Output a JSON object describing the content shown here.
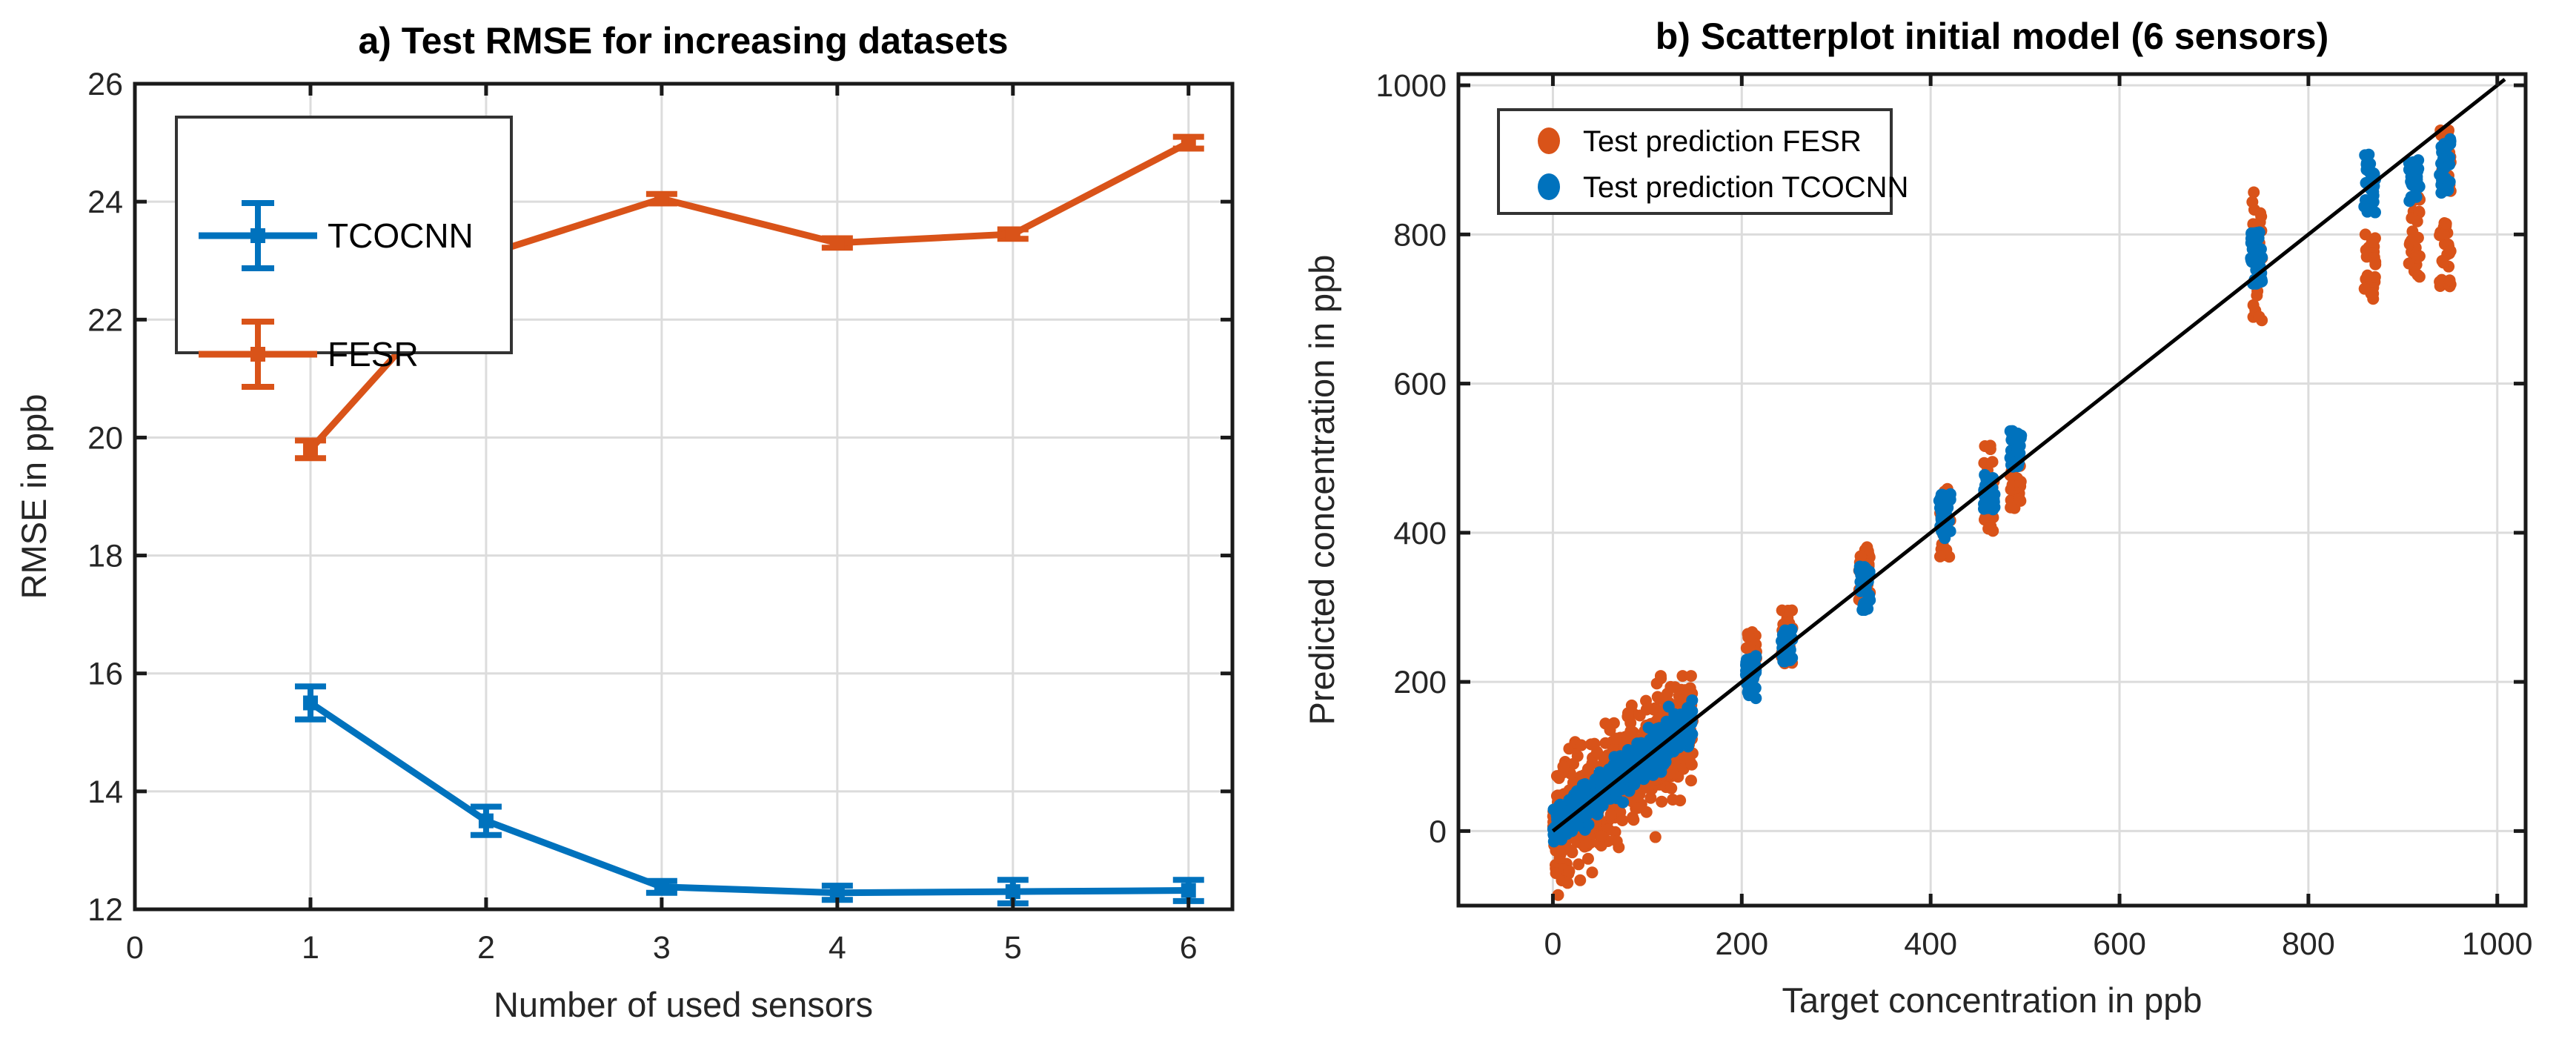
{
  "figure": {
    "background": "#ffffff",
    "colors": {
      "tcocnn": "#0072BD",
      "fesr": "#D95319",
      "identity_line": "#000000",
      "axis": "#1a1a1a",
      "grid": "#dcdcdc",
      "legend_border": "#333333"
    }
  },
  "chart_data": [
    {
      "type": "line",
      "title": "a) Test RMSE for increasing datasets",
      "xlabel": "Number of used sensors",
      "ylabel": "RMSE in ppb",
      "xlim": [
        0,
        6.25
      ],
      "ylim": [
        12,
        26
      ],
      "xticks": [
        0,
        1,
        2,
        3,
        4,
        5,
        6
      ],
      "yticks": [
        12,
        14,
        16,
        18,
        20,
        22,
        24,
        26
      ],
      "grid": true,
      "legend_position": "northwest",
      "series": [
        {
          "name": "TCOCNN",
          "color_key": "tcocnn",
          "x": [
            1,
            2,
            3,
            4,
            5,
            6
          ],
          "y": [
            15.5,
            13.5,
            12.38,
            12.28,
            12.3,
            12.32
          ],
          "yerr": [
            0.28,
            0.24,
            0.1,
            0.12,
            0.2,
            0.18
          ]
        },
        {
          "name": "FESR",
          "color_key": "fesr",
          "x": [
            1,
            2,
            3,
            4,
            5,
            6
          ],
          "y": [
            19.8,
            23.1,
            24.05,
            23.3,
            23.45,
            25.0
          ],
          "yerr": [
            0.15,
            0.1,
            0.08,
            0.08,
            0.08,
            0.1
          ]
        }
      ]
    },
    {
      "type": "scatter",
      "title": "b) Scatterplot initial model (6 sensors)",
      "xlabel": "Target concentration in ppb",
      "ylabel": "Predicted concentration in ppb",
      "xlim": [
        -100,
        1030
      ],
      "ylim": [
        -100,
        1015
      ],
      "xticks": [
        0,
        200,
        400,
        600,
        800,
        1000
      ],
      "yticks": [
        0,
        200,
        400,
        600,
        800,
        1000
      ],
      "grid": true,
      "identity_line": {
        "from": [
          0,
          0
        ],
        "to": [
          1008,
          1008
        ]
      },
      "legend_position": "northwest",
      "series": [
        {
          "name": "Test prediction FESR",
          "color_key": "fesr"
        },
        {
          "name": "Test prediction TCOCNN",
          "color_key": "tcocnn"
        }
      ],
      "marker_radius": 8,
      "cloud": {
        "x_min": 0,
        "x_max": 148,
        "n_fesr": 520,
        "n_tcocnn": 550,
        "fesr_sigma": 40,
        "tcocnn_sigma": 13,
        "fesr_y_clip": [
          -88,
          208
        ],
        "tcocnn_y_clip": [
          -28,
          185
        ]
      },
      "cluster_n": {
        "tcocnn": 36,
        "fesr": 26,
        "x_jitter": 6
      },
      "clusters": [
        {
          "x": 210,
          "tcocnn": [
            178,
            235
          ],
          "fesr": [
            215,
            268
          ]
        },
        {
          "x": 248,
          "tcocnn": [
            225,
            272
          ],
          "fesr": [
            222,
            305
          ]
        },
        {
          "x": 330,
          "tcocnn": [
            292,
            355
          ],
          "fesr": [
            300,
            385
          ]
        },
        {
          "x": 415,
          "tcocnn": [
            385,
            452
          ],
          "fesr": [
            358,
            460
          ]
        },
        {
          "x": 462,
          "tcocnn": [
            428,
            478
          ],
          "fesr": [
            400,
            522
          ]
        },
        {
          "x": 490,
          "tcocnn": [
            488,
            537
          ],
          "fesr": [
            432,
            492
          ]
        },
        {
          "x": 745,
          "tcocnn": [
            733,
            806
          ],
          "fesr": [
            668,
            862
          ]
        },
        {
          "x": 865,
          "tcocnn": [
            828,
            908
          ],
          "fesr": [
            712,
            802
          ]
        },
        {
          "x": 912,
          "tcocnn": [
            843,
            905
          ],
          "fesr": [
            740,
            852
          ]
        },
        {
          "x": 945,
          "tcocnn": [
            855,
            928
          ],
          "fesr": [
            730,
            826
          ],
          "fesr_extra": [
            857,
            942
          ]
        }
      ]
    }
  ]
}
